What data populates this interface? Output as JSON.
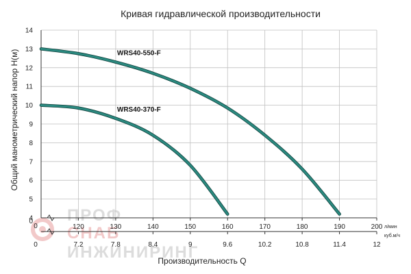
{
  "chart_data": {
    "type": "line",
    "title": "Кривая гидравлической производительности",
    "ylabel": "Общий манометрический напор Н(м)",
    "xlabel": "Производительность Q",
    "x_unit": "л/мин",
    "x2_unit": "куб.м/ч",
    "xlim": [
      110,
      200
    ],
    "ylim": [
      4,
      14
    ],
    "x_axis_origin_label": "0",
    "x_ticks": [
      120,
      130,
      140,
      150,
      160,
      170,
      180,
      190,
      200
    ],
    "x2_axis_origin_label": "0",
    "x2_ticks": [
      {
        "label": "7.2",
        "at": 120
      },
      {
        "label": "7.8",
        "at": 130
      },
      {
        "label": "8.4",
        "at": 140
      },
      {
        "label": "9",
        "at": 150
      },
      {
        "label": "9.6",
        "at": 160
      },
      {
        "label": "10.2",
        "at": 170
      },
      {
        "label": "10.8",
        "at": 180
      },
      {
        "label": "11.4",
        "at": 190
      },
      {
        "label": "12",
        "at": 200
      }
    ],
    "y_ticks": [
      4,
      5,
      6,
      7,
      8,
      9,
      10,
      11,
      12,
      13,
      14
    ],
    "y_origin_label": "0",
    "grid": true,
    "series": [
      {
        "name": "WRS40-550-F",
        "color": "#2b8a80",
        "x": [
          110,
          120,
          130,
          140,
          150,
          160,
          170,
          180,
          190
        ],
        "y": [
          13.0,
          12.75,
          12.3,
          11.7,
          10.9,
          9.85,
          8.4,
          6.6,
          4.2
        ]
      },
      {
        "name": "WRS40-370-F",
        "color": "#2b8a80",
        "x": [
          110,
          120,
          130,
          140,
          150,
          160
        ],
        "y": [
          10.0,
          9.85,
          9.3,
          8.4,
          6.8,
          4.2
        ]
      }
    ]
  },
  "watermark": {
    "line1": "ПРОФ",
    "line2": "СНАБ",
    "line3": "ИНЖИНИРИНГ",
    "color": "#dcdcdc",
    "accent": "#f2c9c9"
  }
}
